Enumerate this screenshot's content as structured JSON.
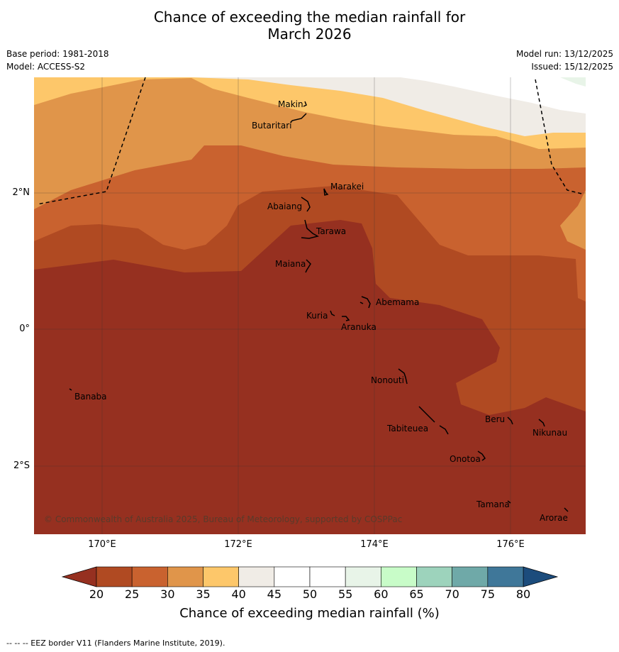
{
  "header": {
    "title_line1": "Chance of exceeding the median rainfall for",
    "title_line2": "March 2026",
    "base_period": "Base period: 1981-2018",
    "model": "Model: ACCESS-S2",
    "model_run": "Model run: 13/12/2025",
    "issued": "Issued: 15/12/2025"
  },
  "axes": {
    "lon_labels": [
      "170°E",
      "172°E",
      "174°E",
      "176°E"
    ],
    "lat_labels": [
      "2°N",
      "0°",
      "2°S"
    ]
  },
  "places": [
    "Makin",
    "Butaritari",
    "Marakei",
    "Abaiang",
    "Tarawa",
    "Maiana",
    "Abemama",
    "Kuria",
    "Aranuka",
    "Nonouti",
    "Banaba",
    "Beru",
    "Nikunau",
    "Tabiteuea",
    "Onotoa",
    "Tamana",
    "Arorae"
  ],
  "copyright": "© Commonwealth of Australia 2025, Bureau of Meteorology, supported by COSPPac",
  "colorbar": {
    "ticks": [
      "20",
      "25",
      "30",
      "35",
      "40",
      "45",
      "50",
      "55",
      "60",
      "65",
      "70",
      "75",
      "80"
    ],
    "colors": [
      "#b04a22",
      "#c9622f",
      "#e0954a",
      "#fdc76a",
      "#f0ece6",
      "#ffffff",
      "#ffffff",
      "#e8f4e8",
      "#c8fcc8",
      "#9dd3bc",
      "#6fa9a8",
      "#3f7799"
    ],
    "under_color": "#963020",
    "over_color": "#1c4c7c",
    "label": "Chance of exceeding median rainfall (%)"
  },
  "footer": "--  --  -- EEZ border V11 (Flanders Marine Institute, 2019)."
}
